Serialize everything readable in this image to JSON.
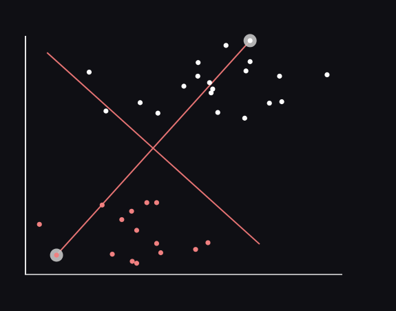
{
  "chart_data": {
    "type": "scatter",
    "title": "",
    "xlabel": "",
    "ylabel": "",
    "xlim": [
      0,
      10
    ],
    "ylim": [
      0,
      10
    ],
    "grid": false,
    "legend": "none",
    "series": [
      {
        "color": "#ffffff",
        "points": [
          [
            2.01,
            8.48
          ],
          [
            2.54,
            6.85
          ],
          [
            3.62,
            7.2
          ],
          [
            4.18,
            6.76
          ],
          [
            5.0,
            7.89
          ],
          [
            5.45,
            8.88
          ],
          [
            5.44,
            8.31
          ],
          [
            5.81,
            8.04
          ],
          [
            5.86,
            7.61
          ],
          [
            5.91,
            7.77
          ],
          [
            6.07,
            6.79
          ],
          [
            6.33,
            9.6
          ],
          [
            6.96,
            8.53
          ],
          [
            7.09,
            8.92
          ],
          [
            6.92,
            6.55
          ],
          [
            7.7,
            7.18
          ],
          [
            8.02,
            8.31
          ],
          [
            8.09,
            7.24
          ],
          [
            9.52,
            8.37
          ]
        ]
      },
      {
        "color": "#f08080",
        "points": [
          [
            0.44,
            2.1
          ],
          [
            0.98,
            0.81
          ],
          [
            2.42,
            2.91
          ],
          [
            2.74,
            0.85
          ],
          [
            3.04,
            2.3
          ],
          [
            3.35,
            2.65
          ],
          [
            3.37,
            0.55
          ],
          [
            3.51,
            0.47
          ],
          [
            3.51,
            1.85
          ],
          [
            3.83,
            3.01
          ],
          [
            4.14,
            1.3
          ],
          [
            4.14,
            3.01
          ],
          [
            4.27,
            0.91
          ],
          [
            5.37,
            1.05
          ],
          [
            5.76,
            1.33
          ]
        ]
      }
    ],
    "lines": [
      {
        "color": "#e57373",
        "from": [
          0.98,
          0.81
        ],
        "to": [
          7.09,
          9.8
        ]
      },
      {
        "color": "#e57373",
        "from": [
          0.68,
          9.3
        ],
        "to": [
          7.39,
          1.27
        ]
      }
    ],
    "highlighted_points": [
      [
        0.98,
        0.81
      ],
      [
        7.09,
        9.8
      ]
    ]
  },
  "colors": {
    "background": "#0f0f14",
    "axis": "#e6e6e6"
  }
}
